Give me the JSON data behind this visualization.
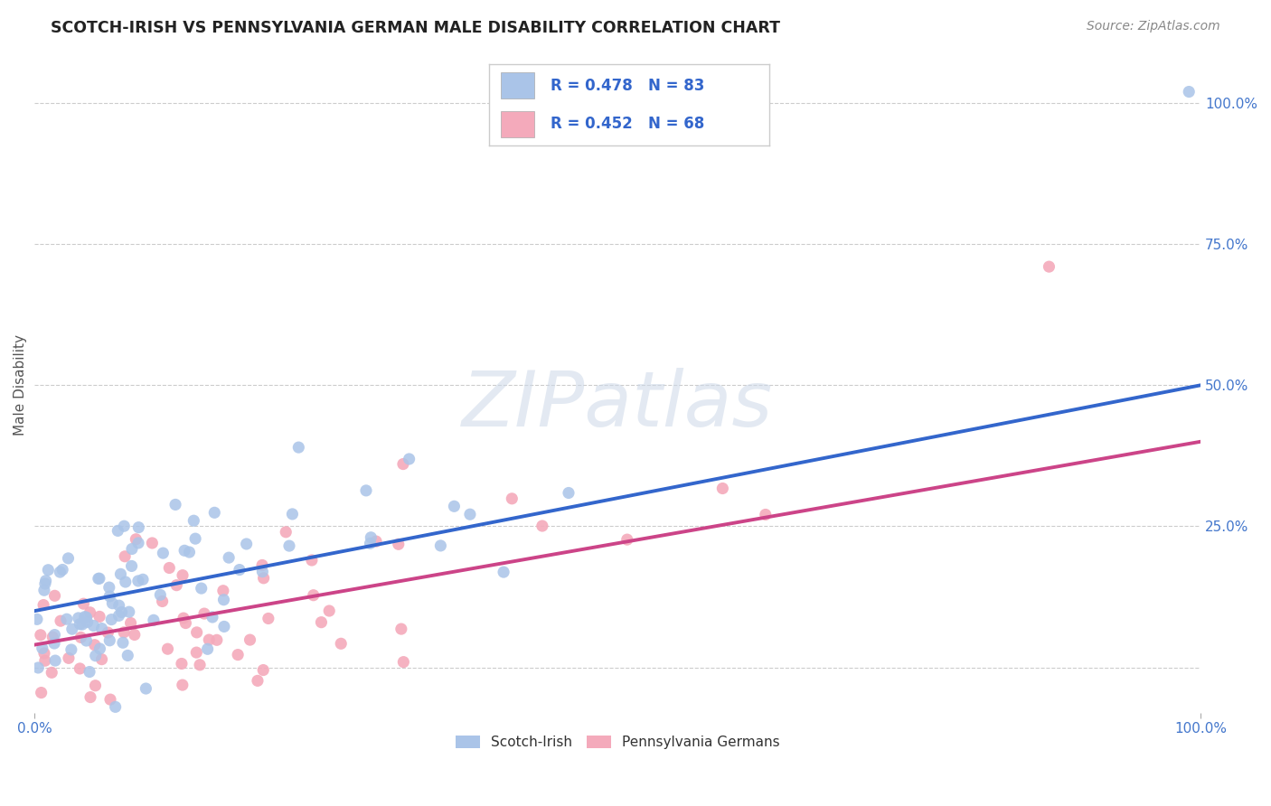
{
  "title": "SCOTCH-IRISH VS PENNSYLVANIA GERMAN MALE DISABILITY CORRELATION CHART",
  "source": "Source: ZipAtlas.com",
  "ylabel": "Male Disability",
  "xlim": [
    0.0,
    1.0
  ],
  "ylim": [
    -0.08,
    1.08
  ],
  "grid_color": "#cccccc",
  "background_color": "#ffffff",
  "watermark_text": "ZIPatlas",
  "scotch_irish_color": "#aac4e8",
  "scotch_irish_line_color": "#3366cc",
  "penn_german_color": "#f4aabb",
  "penn_german_line_color": "#cc4488",
  "scotch_irish_R": 0.478,
  "scotch_irish_N": 83,
  "penn_german_R": 0.452,
  "penn_german_N": 68,
  "si_line_x0": 0.0,
  "si_line_y0": 0.1,
  "si_line_x1": 1.0,
  "si_line_y1": 0.5,
  "pg_line_x0": 0.0,
  "pg_line_y0": 0.04,
  "pg_line_x1": 1.0,
  "pg_line_y1": 0.4,
  "legend_bottom_label_1": "Scotch-Irish",
  "legend_bottom_label_2": "Pennsylvania Germans",
  "tick_color": "#4477cc",
  "axis_label_color": "#555555",
  "title_color": "#222222",
  "source_color": "#888888"
}
